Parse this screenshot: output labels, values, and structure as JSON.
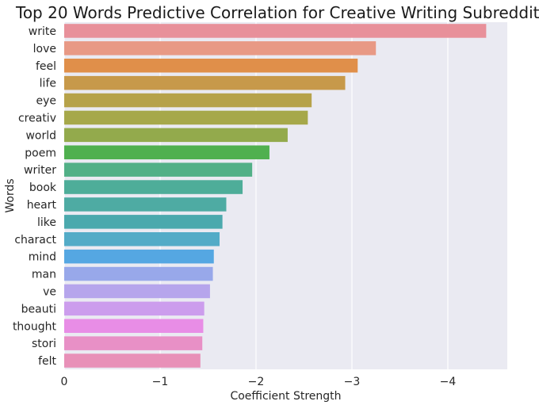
{
  "chart_data": {
    "type": "bar",
    "orientation": "horizontal",
    "title": "Top 20 Words Predictive Correlation for Creative Writing Subreddit",
    "xlabel": "Coefficient Strength",
    "ylabel": "Words",
    "categories": [
      "write",
      "love",
      "feel",
      "life",
      "eye",
      "creativ",
      "world",
      "poem",
      "writer",
      "book",
      "heart",
      "like",
      "charact",
      "mind",
      "man",
      "ve",
      "beauti",
      "thought",
      "stori",
      "felt"
    ],
    "values": [
      -4.4,
      -3.25,
      -3.06,
      -2.93,
      -2.58,
      -2.54,
      -2.33,
      -2.14,
      -1.96,
      -1.86,
      -1.69,
      -1.65,
      -1.62,
      -1.56,
      -1.55,
      -1.52,
      -1.46,
      -1.45,
      -1.44,
      -1.42
    ],
    "colors": [
      "#e8909a",
      "#e89985",
      "#e08f4a",
      "#c7994a",
      "#b6a24a",
      "#a6a84a",
      "#93aa4c",
      "#50b04f",
      "#52b087",
      "#4ead99",
      "#4eaba3",
      "#4ba9ad",
      "#53abc7",
      "#55a7e2",
      "#98a8ea",
      "#b6a5ec",
      "#cc9ded",
      "#e88de6",
      "#e890c6",
      "#e890b8"
    ],
    "xticks": [
      0,
      -1,
      -2,
      -3,
      -4
    ],
    "xtick_labels": [
      "0",
      "−1",
      "−2",
      "−3",
      "−4"
    ],
    "xlim": [
      0,
      -4.62
    ],
    "grid": true,
    "background": "#eaeaf2"
  }
}
